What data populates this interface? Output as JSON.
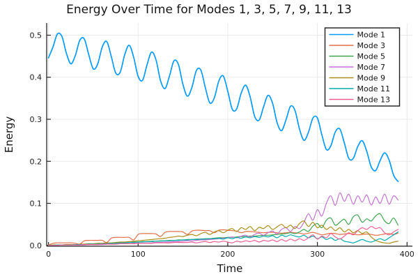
{
  "page": {
    "title": "Energy Over Time for Modes 1, 3, 5, 7, 9, 11, 13"
  },
  "chart_data": {
    "type": "line",
    "title": "Energy Over Time for Modes 1, 3, 5, 7, 9, 11, 13",
    "xlabel": "Time",
    "ylabel": "Energy",
    "xlim": [
      -2,
      406
    ],
    "ylim": [
      -0.002,
      0.529
    ],
    "xticks": [
      0,
      100,
      200,
      300,
      400
    ],
    "xtick_labels": [
      "0",
      "100",
      "200",
      "300",
      "400"
    ],
    "yticks": [
      0.0,
      0.1,
      0.2,
      0.3,
      0.4,
      0.5
    ],
    "ytick_labels": [
      "0.0",
      "0.1",
      "0.2",
      "0.3",
      "0.4",
      "0.5"
    ],
    "grid": true,
    "legend_position": "top-right",
    "background_color": "#FFFFFF",
    "grid_color": "#E9E9E9",
    "axis_color": "#262626",
    "x": [
      0,
      5,
      10,
      15,
      20,
      25,
      30,
      35,
      40,
      45,
      50,
      55,
      60,
      65,
      70,
      75,
      80,
      85,
      90,
      95,
      100,
      105,
      110,
      115,
      120,
      125,
      130,
      135,
      140,
      145,
      150,
      155,
      160,
      165,
      170,
      175,
      180,
      185,
      190,
      195,
      200,
      205,
      210,
      215,
      220,
      225,
      230,
      235,
      240,
      245,
      250,
      255,
      260,
      265,
      270,
      275,
      280,
      285,
      290,
      295,
      300,
      305,
      310,
      315,
      320,
      325,
      330,
      335,
      340,
      345,
      350,
      355,
      360,
      365,
      370,
      375,
      380,
      385,
      390
    ],
    "series": [
      {
        "name": "Mode 1",
        "color": "#009AF9",
        "values": [
          0.446,
          0.472,
          0.503,
          0.497,
          0.457,
          0.432,
          0.452,
          0.488,
          0.491,
          0.453,
          0.42,
          0.432,
          0.472,
          0.485,
          0.45,
          0.41,
          0.412,
          0.453,
          0.476,
          0.448,
          0.402,
          0.393,
          0.43,
          0.46,
          0.441,
          0.392,
          0.373,
          0.403,
          0.439,
          0.43,
          0.383,
          0.355,
          0.376,
          0.416,
          0.417,
          0.375,
          0.339,
          0.351,
          0.391,
          0.403,
          0.367,
          0.324,
          0.325,
          0.362,
          0.381,
          0.353,
          0.307,
          0.298,
          0.33,
          0.357,
          0.338,
          0.292,
          0.273,
          0.299,
          0.331,
          0.321,
          0.277,
          0.25,
          0.269,
          0.303,
          0.303,
          0.263,
          0.228,
          0.237,
          0.27,
          0.277,
          0.244,
          0.207,
          0.207,
          0.235,
          0.249,
          0.224,
          0.187,
          0.178,
          0.202,
          0.22,
          0.203,
          0.167,
          0.152
        ]
      },
      {
        "name": "Mode 3",
        "color": "#E36F47",
        "values": [
          0.001,
          0.005,
          0.006,
          0.006,
          0.006,
          0.006,
          0.005,
          0.003,
          0.011,
          0.012,
          0.012,
          0.012,
          0.012,
          0.007,
          0.017,
          0.019,
          0.019,
          0.019,
          0.019,
          0.013,
          0.026,
          0.028,
          0.028,
          0.028,
          0.027,
          0.021,
          0.031,
          0.033,
          0.033,
          0.033,
          0.032,
          0.026,
          0.034,
          0.036,
          0.036,
          0.035,
          0.035,
          0.03,
          0.036,
          0.037,
          0.036,
          0.035,
          0.034,
          0.03,
          0.033,
          0.033,
          0.032,
          0.031,
          0.03,
          0.031,
          0.031,
          0.03,
          0.029,
          0.03,
          0.031,
          0.03,
          0.029,
          0.027,
          0.029,
          0.031,
          0.028,
          0.025,
          0.027,
          0.029,
          0.028,
          0.026,
          0.027,
          0.028,
          0.027,
          0.025,
          0.026,
          0.027,
          0.026,
          0.024,
          0.025,
          0.027,
          0.028,
          0.026,
          0.029
        ]
      },
      {
        "name": "Mode 5",
        "color": "#3EA44E",
        "values": [
          0.0,
          0.001,
          0.001,
          0.001,
          0.002,
          0.002,
          0.002,
          0.002,
          0.003,
          0.003,
          0.003,
          0.004,
          0.004,
          0.005,
          0.005,
          0.006,
          0.006,
          0.007,
          0.007,
          0.008,
          0.008,
          0.009,
          0.009,
          0.01,
          0.01,
          0.011,
          0.011,
          0.012,
          0.012,
          0.013,
          0.013,
          0.014,
          0.014,
          0.015,
          0.015,
          0.016,
          0.016,
          0.017,
          0.018,
          0.018,
          0.019,
          0.019,
          0.02,
          0.021,
          0.021,
          0.022,
          0.022,
          0.023,
          0.024,
          0.024,
          0.025,
          0.026,
          0.027,
          0.028,
          0.03,
          0.028,
          0.032,
          0.038,
          0.033,
          0.046,
          0.052,
          0.042,
          0.06,
          0.065,
          0.048,
          0.055,
          0.062,
          0.05,
          0.068,
          0.072,
          0.055,
          0.063,
          0.058,
          0.07,
          0.075,
          0.058,
          0.052,
          0.065,
          0.048
        ]
      },
      {
        "name": "Mode 7",
        "color": "#C371D2",
        "values": [
          0.0,
          0.0,
          0.0,
          0.001,
          0.001,
          0.001,
          0.001,
          0.001,
          0.001,
          0.002,
          0.002,
          0.002,
          0.002,
          0.003,
          0.003,
          0.003,
          0.004,
          0.004,
          0.004,
          0.005,
          0.005,
          0.005,
          0.006,
          0.006,
          0.007,
          0.007,
          0.008,
          0.008,
          0.009,
          0.009,
          0.01,
          0.011,
          0.011,
          0.012,
          0.013,
          0.013,
          0.014,
          0.015,
          0.016,
          0.017,
          0.018,
          0.02,
          0.018,
          0.022,
          0.024,
          0.02,
          0.026,
          0.029,
          0.024,
          0.03,
          0.034,
          0.027,
          0.038,
          0.042,
          0.033,
          0.045,
          0.04,
          0.055,
          0.075,
          0.06,
          0.085,
          0.07,
          0.1,
          0.118,
          0.095,
          0.125,
          0.105,
          0.122,
          0.098,
          0.118,
          0.103,
          0.12,
          0.096,
          0.115,
          0.1,
          0.122,
          0.098,
          0.118,
          0.108
        ]
      },
      {
        "name": "Mode 9",
        "color": "#AC8E18",
        "values": [
          0.0,
          0.001,
          0.001,
          0.001,
          0.002,
          0.002,
          0.002,
          0.003,
          0.003,
          0.004,
          0.004,
          0.005,
          0.005,
          0.006,
          0.006,
          0.007,
          0.008,
          0.008,
          0.009,
          0.01,
          0.011,
          0.012,
          0.013,
          0.014,
          0.015,
          0.016,
          0.017,
          0.019,
          0.02,
          0.022,
          0.021,
          0.024,
          0.026,
          0.023,
          0.028,
          0.031,
          0.026,
          0.032,
          0.035,
          0.03,
          0.036,
          0.04,
          0.033,
          0.042,
          0.038,
          0.045,
          0.035,
          0.043,
          0.04,
          0.047,
          0.038,
          0.044,
          0.05,
          0.042,
          0.048,
          0.04,
          0.052,
          0.058,
          0.045,
          0.055,
          0.042,
          0.048,
          0.038,
          0.044,
          0.035,
          0.042,
          0.032,
          0.038,
          0.03,
          0.035,
          0.028,
          0.032,
          0.02,
          0.012,
          0.008,
          0.006,
          0.005,
          0.008,
          0.01
        ]
      },
      {
        "name": "Mode 11",
        "color": "#00AAAE",
        "values": [
          0.0,
          0.0,
          0.001,
          0.001,
          0.001,
          0.001,
          0.002,
          0.002,
          0.002,
          0.003,
          0.003,
          0.003,
          0.004,
          0.004,
          0.005,
          0.005,
          0.006,
          0.006,
          0.007,
          0.007,
          0.008,
          0.008,
          0.009,
          0.009,
          0.01,
          0.01,
          0.011,
          0.011,
          0.012,
          0.012,
          0.013,
          0.013,
          0.014,
          0.014,
          0.015,
          0.015,
          0.016,
          0.016,
          0.017,
          0.015,
          0.018,
          0.016,
          0.019,
          0.017,
          0.02,
          0.018,
          0.021,
          0.019,
          0.022,
          0.02,
          0.023,
          0.018,
          0.024,
          0.021,
          0.025,
          0.022,
          0.02,
          0.024,
          0.018,
          0.022,
          0.016,
          0.02,
          0.014,
          0.018,
          0.012,
          0.016,
          0.01,
          0.008,
          0.006,
          0.01,
          0.014,
          0.01,
          0.008,
          0.012,
          0.016,
          0.012,
          0.018,
          0.025,
          0.032
        ]
      },
      {
        "name": "Mode 13",
        "color": "#ED5E93",
        "values": [
          0.0,
          0.0,
          0.0,
          0.001,
          0.001,
          0.001,
          0.001,
          0.001,
          0.002,
          0.002,
          0.002,
          0.002,
          0.003,
          0.003,
          0.003,
          0.003,
          0.004,
          0.004,
          0.004,
          0.004,
          0.005,
          0.005,
          0.005,
          0.005,
          0.006,
          0.006,
          0.006,
          0.006,
          0.007,
          0.007,
          0.007,
          0.007,
          0.008,
          0.006,
          0.008,
          0.009,
          0.007,
          0.009,
          0.008,
          0.01,
          0.008,
          0.006,
          0.01,
          0.008,
          0.011,
          0.009,
          0.012,
          0.008,
          0.012,
          0.01,
          0.013,
          0.009,
          0.014,
          0.01,
          0.015,
          0.011,
          0.016,
          0.012,
          0.018,
          0.025,
          0.015,
          0.022,
          0.018,
          0.028,
          0.02,
          0.015,
          0.022,
          0.03,
          0.025,
          0.035,
          0.042,
          0.038,
          0.045,
          0.04,
          0.042,
          0.03,
          0.025,
          0.032,
          0.038
        ]
      }
    ]
  }
}
